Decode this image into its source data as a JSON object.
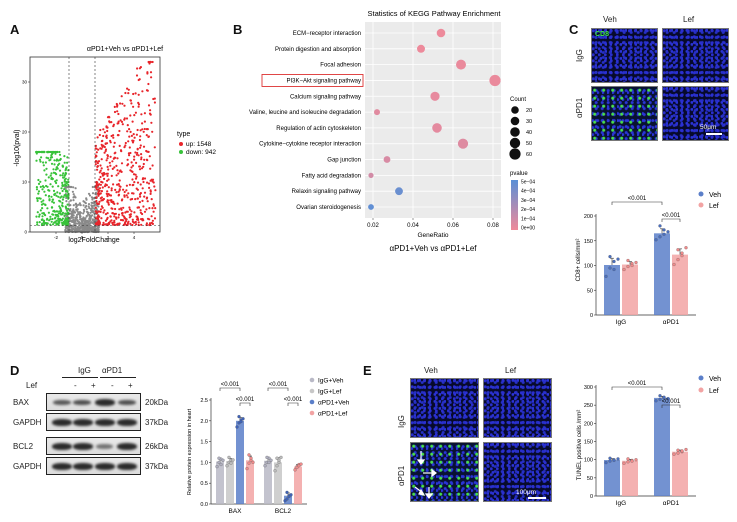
{
  "panels": {
    "A": {
      "letter": "A"
    },
    "B": {
      "letter": "B"
    },
    "C": {
      "letter": "C"
    },
    "D": {
      "letter": "D"
    },
    "E": {
      "letter": "E"
    }
  },
  "colors": {
    "up": "#e8252b",
    "down": "#38c23a",
    "ns": "#8a8a8a",
    "veh": "#5b7fc9",
    "lef": "#f2a3a3",
    "igg_veh": "#b9b9c6",
    "igg_lef": "#c7c7c7",
    "apd1_veh": "#5b7fc9",
    "apd1_lef": "#f2a3a3",
    "pval_high": "#5b8fd6",
    "pval_low": "#f08a9a"
  },
  "chart_data": [
    {
      "id": "volcano",
      "type": "scatter",
      "title": "αPD1+Veh vs αPD1+Lef",
      "xlabel": "log2FoldChange",
      "ylabel": "-log10(pval)",
      "xticks": [
        "-2",
        "0",
        "2",
        "4"
      ],
      "yticks": [
        "0",
        "10",
        "20",
        "30"
      ],
      "xlim": [
        -4,
        6
      ],
      "ylim": [
        0,
        35
      ],
      "legend_title": "type",
      "legend": [
        {
          "name": "up: 1548",
          "color": "#e8252b"
        },
        {
          "name": "down: 942",
          "color": "#38c23a"
        }
      ]
    },
    {
      "id": "kegg",
      "type": "scatter",
      "title": "Statistics of KEGG Pathway Enrichment",
      "xlabel": "GeneRatio",
      "footer": "αPD1+Veh vs αPD1+Lef",
      "xticks": [
        0.02,
        0.04,
        0.06,
        0.08
      ],
      "xlim": [
        0.016,
        0.084
      ],
      "highlighted": "PI3K−Akt signaling pathway",
      "size_legend_title": "Count",
      "size_legend": [
        20,
        30,
        40,
        50,
        60
      ],
      "color_legend_title": "pvalue",
      "color_legend": [
        "5e−04",
        "4e−04",
        "3e−04",
        "2e−04",
        "1e−04",
        "0e+00"
      ],
      "pathways": [
        {
          "name": "ECM−receptor interaction",
          "ratio": 0.054,
          "count": 30,
          "pvalue": 1e-05
        },
        {
          "name": "Protein digestion and absorption",
          "ratio": 0.044,
          "count": 24,
          "pvalue": 1e-05
        },
        {
          "name": "Focal adhesion",
          "ratio": 0.064,
          "count": 45,
          "pvalue": 2e-05
        },
        {
          "name": "PI3K−Akt signaling pathway",
          "ratio": 0.081,
          "count": 62,
          "pvalue": 2e-05
        },
        {
          "name": "Calcium signaling pathway",
          "ratio": 0.051,
          "count": 36,
          "pvalue": 3e-05
        },
        {
          "name": "Valine, leucine and isoleucine degradation",
          "ratio": 0.022,
          "count": 10,
          "pvalue": 5e-05
        },
        {
          "name": "Regulation of actin cytoskeleton",
          "ratio": 0.052,
          "count": 40,
          "pvalue": 4e-05
        },
        {
          "name": "Cytokine−cytokine receptor interaction",
          "ratio": 0.065,
          "count": 48,
          "pvalue": 6e-05
        },
        {
          "name": "Gap junction",
          "ratio": 0.027,
          "count": 14,
          "pvalue": 8e-05
        },
        {
          "name": "Fatty acid degradation",
          "ratio": 0.019,
          "count": 6,
          "pvalue": 0.0001
        },
        {
          "name": "Relaxin signaling pathway",
          "ratio": 0.033,
          "count": 22,
          "pvalue": 0.00045
        },
        {
          "name": "Ovarian steroidogenesis",
          "ratio": 0.019,
          "count": 8,
          "pvalue": 0.00048
        }
      ]
    },
    {
      "id": "cd8",
      "type": "bar",
      "ylabel": "CD8+ cells/mm²",
      "categories": [
        "IgG",
        "αPD1"
      ],
      "yticks": [
        0,
        50,
        100,
        150,
        200
      ],
      "ylim": [
        0,
        200
      ],
      "series": [
        {
          "name": "Veh",
          "values": [
            101,
            165
          ],
          "points": [
            [
              78,
              95,
              108,
              118,
              92,
              113
            ],
            [
              152,
              158,
              172,
              180,
              163,
              168
            ]
          ]
        },
        {
          "name": "Lef",
          "values": [
            102,
            122
          ],
          "points": [
            [
              92,
              98,
              104,
              110,
              100,
              106
            ],
            [
              102,
              112,
              120,
              132,
              125,
              136
            ]
          ]
        }
      ],
      "annotations": [
        {
          "text": "<0.001",
          "from": "IgG-Veh",
          "to": "αPD1-Veh"
        },
        {
          "text": "<0.001",
          "from": "αPD1-Veh",
          "to": "αPD1-Lef"
        }
      ]
    },
    {
      "id": "western",
      "type": "bar",
      "ylabel": "Relative protein expression in heart",
      "categories": [
        "BAX",
        "BCL2"
      ],
      "yticks": [
        "0.0",
        "0.5",
        "1.0",
        "1.5",
        "2.0",
        "2.5"
      ],
      "ylim": [
        0,
        2.5
      ],
      "series": [
        {
          "name": "IgG+Veh",
          "values": [
            1.02,
            1.04
          ],
          "points": [
            [
              0.9,
              1.0,
              1.08,
              1.1,
              0.95,
              1.05
            ],
            [
              0.92,
              1.0,
              1.1,
              1.12,
              1.0,
              1.05
            ]
          ]
        },
        {
          "name": "IgG+Lef",
          "values": [
            1.03,
            1.0
          ],
          "points": [
            [
              0.92,
              1.0,
              1.05,
              1.12,
              0.98,
              1.06
            ],
            [
              0.8,
              0.92,
              1.0,
              1.1,
              1.05,
              1.12
            ]
          ]
        },
        {
          "name": "αPD1+Veh",
          "values": [
            2.0,
            0.2
          ],
          "points": [
            [
              1.85,
              1.95,
              2.02,
              2.1,
              1.98,
              2.05
            ],
            [
              0.08,
              0.12,
              0.2,
              0.28,
              0.18,
              0.22
            ]
          ]
        },
        {
          "name": "αPD1+Lef",
          "values": [
            1.05,
            0.9
          ],
          "points": [
            [
              0.85,
              0.98,
              1.05,
              1.18,
              1.1,
              1.0
            ],
            [
              0.82,
              0.9,
              0.95,
              0.88,
              0.92,
              0.96
            ]
          ]
        }
      ],
      "annotations": [
        {
          "text": "<0.001",
          "group": "BAX",
          "level": "outer"
        },
        {
          "text": "<0.001",
          "group": "BAX",
          "level": "inner"
        },
        {
          "text": "<0.001",
          "group": "BCL2",
          "level": "outer"
        },
        {
          "text": "<0.001",
          "group": "BCL2",
          "level": "inner"
        }
      ]
    },
    {
      "id": "tunel",
      "type": "bar",
      "ylabel": "TUNEL positive cells /mm²",
      "categories": [
        "IgG",
        "αPD1"
      ],
      "yticks": [
        0,
        50,
        100,
        150,
        200,
        250,
        300
      ],
      "ylim": [
        0,
        300
      ],
      "series": [
        {
          "name": "Veh",
          "values": [
            99,
            270
          ],
          "points": [
            [
              92,
              96,
              100,
              104,
              98,
              102
            ],
            [
              262,
              266,
              270,
              276,
              272,
              268
            ]
          ]
        },
        {
          "name": "Lef",
          "values": [
            97,
            122
          ],
          "points": [
            [
              90,
              94,
              98,
              102,
              96,
              100
            ],
            [
              115,
              118,
              122,
              126,
              124,
              128
            ]
          ]
        }
      ],
      "annotations": [
        {
          "text": "<0.001",
          "from": "IgG-Veh",
          "to": "αPD1-Veh"
        },
        {
          "text": "<0.001",
          "from": "αPD1-Veh",
          "to": "αPD1-Lef"
        }
      ]
    }
  ],
  "images": {
    "C": {
      "col_labels": [
        "Veh",
        "Lef"
      ],
      "row_labels": [
        "IgG",
        "αPD1"
      ],
      "stain_label": "CD8",
      "scale_label": "50μm"
    },
    "E": {
      "col_labels": [
        "Veh",
        "Lef"
      ],
      "row_labels": [
        "IgG",
        "αPD1"
      ],
      "scale_label": "100μm"
    }
  },
  "blot": {
    "group_labels": [
      "IgG",
      "αPD1"
    ],
    "lef_label": "Lef",
    "lane_signs": [
      "-",
      "+",
      "-",
      "+"
    ],
    "rows": [
      {
        "name": "BAX",
        "kda": "20kDa"
      },
      {
        "name": "GAPDH",
        "kda": "37kDa"
      },
      {
        "name": "BCL2",
        "kda": "26kDa"
      },
      {
        "name": "GAPDH",
        "kda": "37kDa"
      }
    ]
  }
}
